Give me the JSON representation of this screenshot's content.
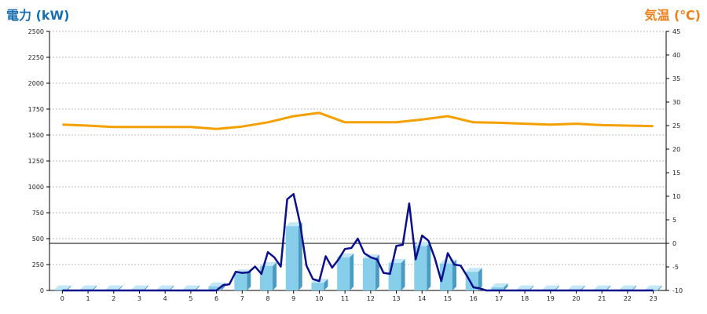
{
  "chart_data": {
    "type": "bar",
    "left_axis_title": "電力 (kW)",
    "right_axis_title": "気温 (℃)",
    "categories": [
      "0",
      "1",
      "2",
      "3",
      "4",
      "5",
      "6",
      "7",
      "8",
      "9",
      "10",
      "11",
      "12",
      "13",
      "14",
      "15",
      "16",
      "17",
      "18",
      "19",
      "20",
      "21",
      "22",
      "23"
    ],
    "left_ticks": [
      "0",
      "250",
      "500",
      "750",
      "1000",
      "1250",
      "1500",
      "1750",
      "2000",
      "2250",
      "2500"
    ],
    "right_ticks": [
      "-10",
      "-5",
      "0",
      "5",
      "10",
      "15",
      "20",
      "25",
      "30",
      "35",
      "40",
      "45"
    ],
    "ylim_left": [
      0,
      2500
    ],
    "ylim_right": [
      -10,
      45
    ],
    "grid": "horizontal-dotted",
    "series": [
      {
        "kind": "bar",
        "axis": "left",
        "color": "#87ceeb",
        "values": [
          10,
          10,
          10,
          10,
          10,
          10,
          40,
          165,
          235,
          620,
          75,
          320,
          310,
          265,
          430,
          260,
          180,
          30,
          10,
          10,
          10,
          10,
          10,
          10
        ]
      },
      {
        "kind": "line",
        "axis": "left",
        "color": "#0c0f8c",
        "x": [
          0,
          1,
          2,
          3,
          4,
          5,
          5.75,
          6,
          6.25,
          6.5,
          6.75,
          7,
          7.25,
          7.5,
          7.75,
          8,
          8.25,
          8.5,
          8.75,
          9,
          9.25,
          9.5,
          9.75,
          10,
          10.25,
          10.5,
          10.75,
          11,
          11.25,
          11.5,
          11.75,
          12,
          12.25,
          12.5,
          12.75,
          13,
          13.25,
          13.5,
          13.75,
          14,
          14.25,
          14.5,
          14.75,
          15,
          15.25,
          15.5,
          15.75,
          16,
          16.25,
          16.5,
          16.75,
          17,
          18,
          19,
          20,
          21,
          22,
          23
        ],
        "values": [
          0,
          0,
          0,
          0,
          0,
          0,
          0,
          0,
          50,
          60,
          180,
          170,
          175,
          230,
          160,
          370,
          320,
          230,
          880,
          930,
          650,
          240,
          110,
          90,
          330,
          220,
          300,
          400,
          410,
          500,
          360,
          320,
          300,
          170,
          160,
          430,
          440,
          840,
          300,
          530,
          480,
          310,
          90,
          360,
          250,
          240,
          140,
          30,
          20,
          0,
          0,
          0,
          0,
          0,
          0,
          0,
          0,
          0
        ]
      },
      {
        "kind": "line",
        "axis": "right",
        "color": "#f5a000",
        "x": [
          0,
          1,
          2,
          3,
          4,
          5,
          6,
          7,
          8,
          9,
          10,
          11,
          12,
          13,
          14,
          15,
          16,
          17,
          18,
          19,
          20,
          21,
          22,
          23
        ],
        "values": [
          25.2,
          25.0,
          24.7,
          24.7,
          24.7,
          24.7,
          24.3,
          24.8,
          25.7,
          27.0,
          27.7,
          25.7,
          25.7,
          25.7,
          26.3,
          27.0,
          25.7,
          25.6,
          25.4,
          25.2,
          25.4,
          25.1,
          25.0,
          24.9
        ]
      }
    ],
    "reference_line": {
      "axis": "right",
      "value": 0
    }
  }
}
